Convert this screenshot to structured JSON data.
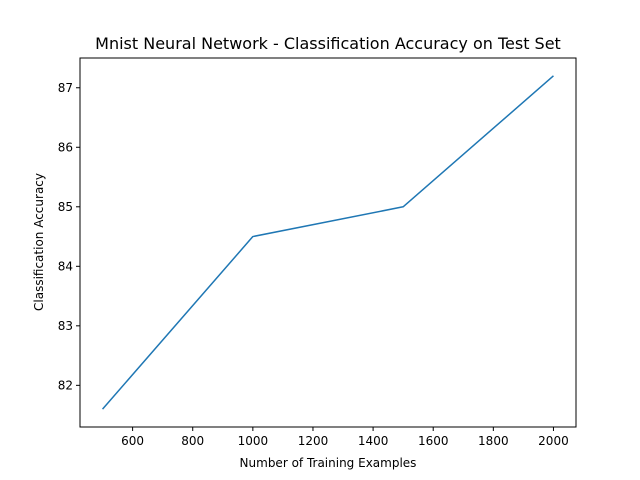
{
  "chart_data": {
    "type": "line",
    "title": "Mnist Neural Network - Classification Accuracy on Test Set",
    "xlabel": "Number of Training Examples",
    "ylabel": "Classification Accuracy",
    "x": [
      500,
      1000,
      1500,
      2000
    ],
    "series": [
      {
        "values": [
          81.6,
          84.5,
          85.0,
          87.2
        ],
        "color": "#1f77b4"
      }
    ],
    "xlim": [
      425,
      2075
    ],
    "ylim": [
      81.3,
      87.5
    ],
    "xticks": [
      600,
      800,
      1000,
      1200,
      1400,
      1600,
      1800,
      2000
    ],
    "yticks": [
      82,
      83,
      84,
      85,
      86,
      87
    ],
    "grid": false,
    "legend": "none"
  }
}
